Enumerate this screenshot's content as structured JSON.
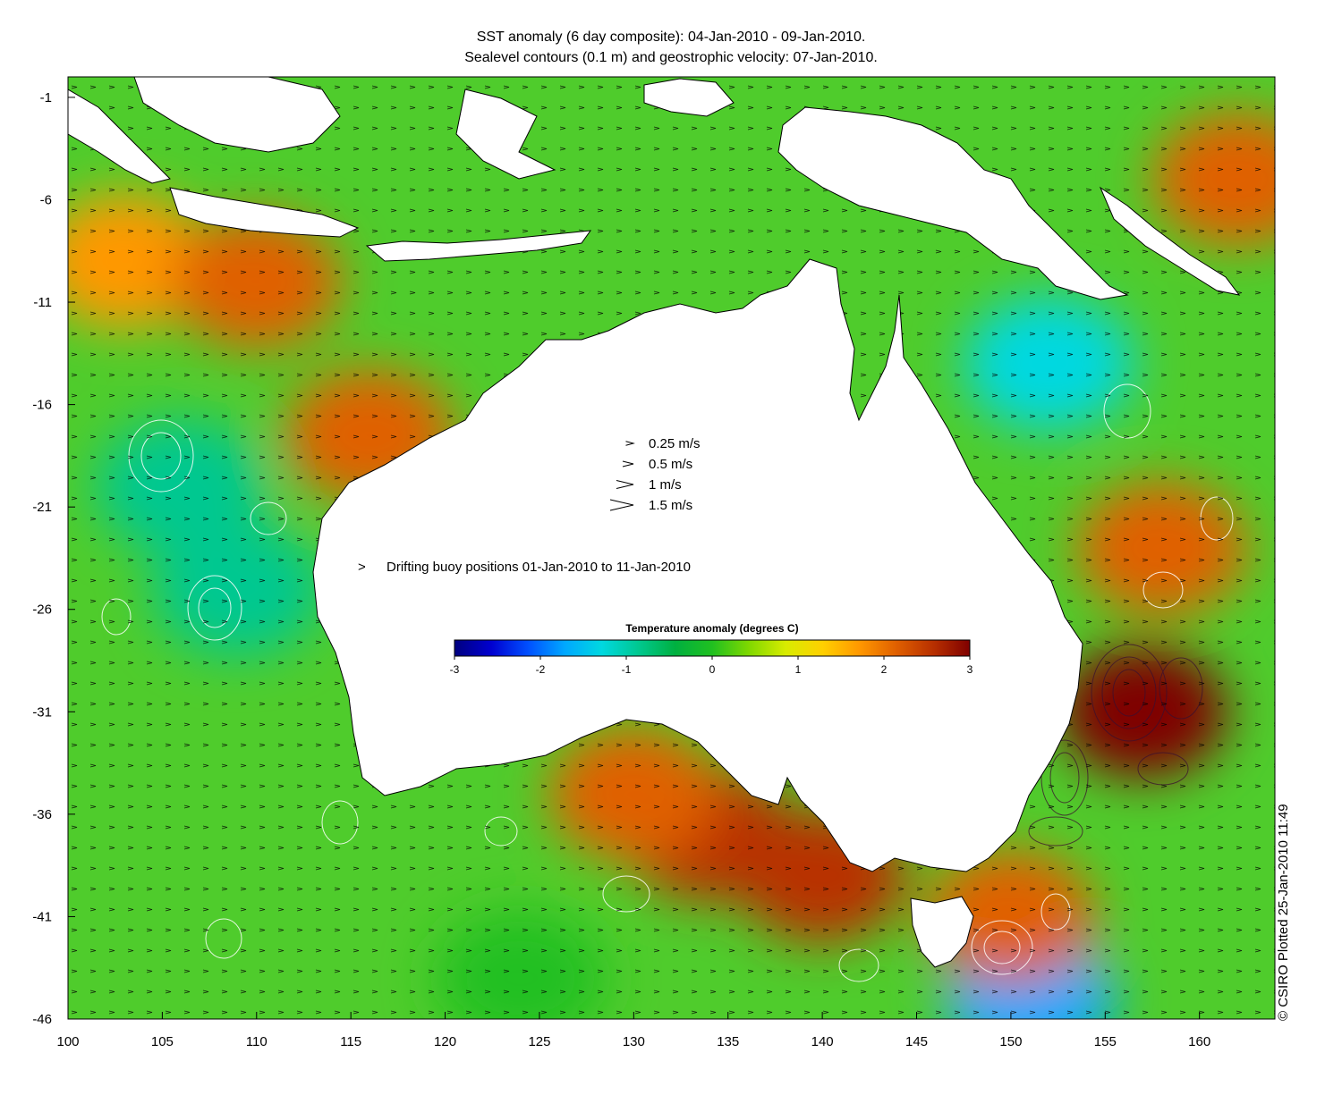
{
  "title": {
    "line1": "SST anomaly (6 day composite): 04-Jan-2010 - 09-Jan-2010.",
    "line2": "Sealevel contours (0.1 m) and geostrophic velocity: 07-Jan-2010."
  },
  "credit": "© CSIRO Plotted 25-Jan-2010 11:49",
  "map": {
    "lon_range": [
      100,
      164
    ],
    "lat_range": [
      -46,
      0
    ],
    "x_ticks": [
      "100",
      "105",
      "110",
      "115",
      "120",
      "125",
      "130",
      "135",
      "140",
      "145",
      "150",
      "155",
      "160"
    ],
    "y_ticks": [
      "-1",
      "-6",
      "-11",
      "-16",
      "-21",
      "-26",
      "-31",
      "-36",
      "-41",
      "-46"
    ],
    "land_color": "#ffffff",
    "coastline_color": "#000000",
    "contour_color": "#ffffff"
  },
  "velocity_legend": [
    {
      "label": "0.25 m/s",
      "speed": 0.25
    },
    {
      "label": "0.5 m/s",
      "speed": 0.5
    },
    {
      "label": "1 m/s",
      "speed": 1
    },
    {
      "label": "1.5 m/s",
      "speed": 1.5
    }
  ],
  "buoy_legend": {
    "symbol": ">",
    "label": "Drifting buoy positions 01-Jan-2010 to 11-Jan-2010",
    "color": "#e020e0"
  },
  "colorbar": {
    "title": "Temperature anomaly (degrees C)",
    "range": [
      -3,
      3
    ],
    "tick_labels": [
      "-3",
      "-2",
      "-1",
      "0",
      "1",
      "2",
      "3"
    ],
    "colors": [
      "#00007f",
      "#0000d0",
      "#0050ff",
      "#00a8ff",
      "#00d8e0",
      "#00c890",
      "#00b040",
      "#20c020",
      "#80d800",
      "#d8ec00",
      "#ffd000",
      "#ff9800",
      "#e06000",
      "#b83000",
      "#7f0000"
    ]
  },
  "anomaly_regions": [
    {
      "lon": 103,
      "lat": -9,
      "anomaly": 1.8
    },
    {
      "lon": 110,
      "lat": -10,
      "anomaly": 2.0
    },
    {
      "lon": 116,
      "lat": -17.5,
      "anomaly": 2.2
    },
    {
      "lon": 106,
      "lat": -20,
      "anomaly": -1.0
    },
    {
      "lon": 109,
      "lat": -25,
      "anomaly": -0.8
    },
    {
      "lon": 134,
      "lat": -37,
      "anomaly": 2.7
    },
    {
      "lon": 130,
      "lat": -35,
      "anomaly": 2.2
    },
    {
      "lon": 140,
      "lat": -39,
      "anomaly": 2.4
    },
    {
      "lon": 157,
      "lat": -31,
      "anomaly": 2.8
    },
    {
      "lon": 158,
      "lat": -23,
      "anomaly": 2.2
    },
    {
      "lon": 162,
      "lat": -5,
      "anomaly": 2.0
    },
    {
      "lon": 152,
      "lat": -14,
      "anomaly": -1.3
    },
    {
      "lon": 151,
      "lat": -45,
      "anomaly": -1.6
    },
    {
      "lon": 124,
      "lat": -44,
      "anomaly": 0.2
    },
    {
      "lon": 150,
      "lat": -41,
      "anomaly": 2.0
    }
  ]
}
